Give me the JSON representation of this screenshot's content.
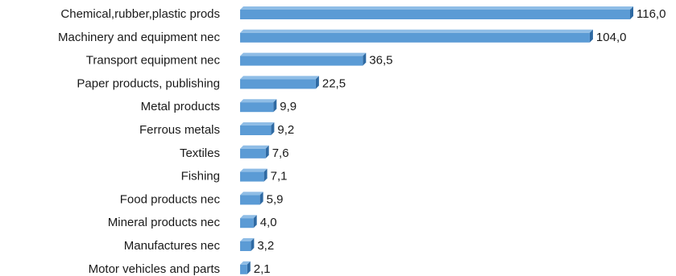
{
  "chart_data": {
    "type": "bar",
    "orientation": "horizontal",
    "title": "",
    "xlabel": "",
    "ylabel": "",
    "grid": false,
    "categories": [
      "Chemical,rubber,plastic prods",
      "Machinery and equipment nec",
      "Transport equipment nec",
      "Paper products, publishing",
      "Metal products",
      "Ferrous metals",
      "Textiles",
      "Fishing",
      "Food products nec",
      "Mineral products nec",
      "Manufactures nec",
      "Motor vehicles and parts"
    ],
    "values": [
      116.0,
      104.0,
      36.5,
      22.5,
      9.9,
      9.2,
      7.6,
      7.1,
      5.9,
      4.0,
      3.2,
      2.1
    ],
    "value_labels": [
      "116,0",
      "104,0",
      "36,5",
      "22,5",
      "9,9",
      "9,2",
      "7,6",
      "7,1",
      "5,9",
      "4,0",
      "3,2",
      "2,1"
    ],
    "xlim": [
      0,
      116
    ],
    "colors": {
      "bar_front": "#5b9bd5",
      "bar_top": "#8fbde6",
      "bar_side": "#2f6aa3",
      "text": "#1a1a1a"
    }
  }
}
